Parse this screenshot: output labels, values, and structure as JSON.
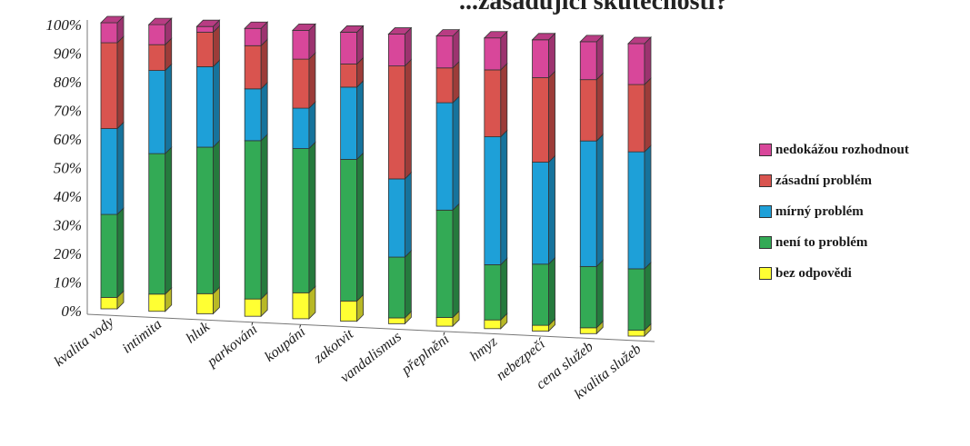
{
  "title_fragment": "...zásadující skutečnosti?",
  "chart_data": {
    "type": "bar",
    "stacked": true,
    "percent": true,
    "ylim": [
      0,
      100
    ],
    "yticks": [
      "0%",
      "10%",
      "20%",
      "30%",
      "40%",
      "50%",
      "60%",
      "70%",
      "80%",
      "90%",
      "100%"
    ],
    "categories": [
      "kvalita vody",
      "intimita",
      "hluk",
      "parkování",
      "koupání",
      "zakotvit",
      "vandalismus",
      "přeplnění",
      "hmyz",
      "nebezpečí",
      "cena služeb",
      "kvalita služeb"
    ],
    "series": [
      {
        "name": "bez odpovědi",
        "color": "#ffff33",
        "values": [
          4,
          6,
          7,
          6,
          9,
          7,
          2,
          3,
          3,
          2,
          2,
          2
        ]
      },
      {
        "name": "není to problém",
        "color": "#33aa55",
        "values": [
          29,
          49,
          51,
          55,
          50,
          49,
          21,
          37,
          19,
          21,
          21,
          21
        ]
      },
      {
        "name": "mírný problém",
        "color": "#1ea0d8",
        "values": [
          30,
          29,
          28,
          18,
          14,
          25,
          27,
          37,
          44,
          35,
          43,
          40
        ]
      },
      {
        "name": "zásadní problém",
        "color": "#d9544f",
        "values": [
          30,
          9,
          12,
          15,
          17,
          8,
          39,
          12,
          23,
          29,
          21,
          23
        ]
      },
      {
        "name": "nedokážou rozhodnout",
        "color": "#d8479a",
        "values": [
          7,
          7,
          2,
          6,
          10,
          11,
          11,
          11,
          11,
          13,
          13,
          14
        ]
      }
    ],
    "legend": "right"
  },
  "legend_order": [
    4,
    3,
    2,
    1,
    0
  ]
}
